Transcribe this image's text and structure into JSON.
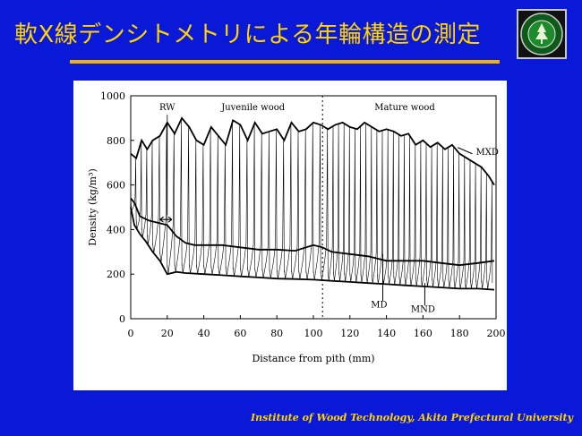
{
  "slide": {
    "title": "軟X線デンシトメトリによる年輪構造の測定",
    "footer": "Institute of Wood Technology, Akita Prefectural University"
  },
  "colors": {
    "background": "#0a18d8",
    "accent": "#ffd400",
    "rule": "#f0b400"
  },
  "chart_data": {
    "type": "line",
    "title": "",
    "xlabel": "Distance from pith (mm)",
    "ylabel": "Density (kg/m³)",
    "xlim": [
      0,
      200
    ],
    "ylim": [
      0,
      1000
    ],
    "x_ticks": [
      0,
      20,
      40,
      60,
      80,
      100,
      120,
      140,
      160,
      180,
      200
    ],
    "y_ticks": [
      0,
      200,
      400,
      600,
      800,
      1000
    ],
    "grid": false,
    "region_divider_x": 105,
    "region_labels": [
      "Juvenile wood",
      "Mature wood"
    ],
    "annotations": [
      "RW",
      "MXD",
      "MD",
      "MND"
    ],
    "series": [
      {
        "name": "MXD",
        "x": [
          0,
          3,
          6,
          9,
          12,
          16,
          20,
          24,
          28,
          32,
          36,
          40,
          44,
          48,
          52,
          56,
          60,
          64,
          68,
          72,
          76,
          80,
          84,
          88,
          92,
          96,
          100,
          104,
          108,
          112,
          116,
          120,
          124,
          128,
          132,
          136,
          140,
          144,
          148,
          152,
          156,
          160,
          164,
          168,
          172,
          176,
          180,
          184,
          188,
          192,
          196,
          199
        ],
        "y": [
          740,
          720,
          800,
          760,
          800,
          820,
          880,
          830,
          900,
          860,
          800,
          780,
          860,
          820,
          780,
          890,
          870,
          800,
          880,
          830,
          840,
          850,
          800,
          880,
          840,
          850,
          880,
          870,
          850,
          870,
          880,
          860,
          850,
          880,
          860,
          840,
          850,
          840,
          820,
          830,
          780,
          800,
          770,
          790,
          760,
          780,
          740,
          720,
          700,
          680,
          640,
          600
        ]
      },
      {
        "name": "MD",
        "x": [
          0,
          2,
          5,
          10,
          15,
          20,
          25,
          30,
          35,
          40,
          50,
          60,
          70,
          80,
          90,
          100,
          105,
          110,
          120,
          130,
          140,
          150,
          160,
          170,
          180,
          190,
          199
        ],
        "y": [
          540,
          520,
          460,
          440,
          430,
          420,
          370,
          340,
          330,
          330,
          330,
          320,
          310,
          310,
          305,
          330,
          320,
          300,
          290,
          280,
          260,
          260,
          260,
          250,
          240,
          250,
          260
        ]
      },
      {
        "name": "MND",
        "x": [
          0,
          2,
          5,
          8,
          12,
          16,
          20,
          25,
          30,
          40,
          50,
          60,
          70,
          80,
          90,
          100,
          110,
          120,
          130,
          140,
          150,
          160,
          170,
          180,
          190,
          199
        ],
        "y": [
          500,
          420,
          380,
          350,
          300,
          260,
          200,
          210,
          205,
          200,
          195,
          190,
          185,
          180,
          178,
          175,
          170,
          165,
          160,
          155,
          150,
          145,
          140,
          135,
          135,
          130
        ]
      }
    ],
    "density_profile": {
      "name": "Density profile",
      "ring_boundaries_x": [
        3,
        6,
        9,
        12,
        16,
        20,
        24,
        28,
        32,
        36,
        40,
        44,
        48,
        52,
        56,
        60,
        64,
        68,
        72,
        76,
        80,
        84,
        88,
        92,
        96,
        100,
        104,
        108,
        111,
        114,
        117,
        120,
        123,
        126,
        129,
        132,
        135,
        138,
        141,
        144,
        147,
        150,
        153,
        156,
        159,
        162,
        165,
        168,
        171,
        174,
        177,
        180,
        183,
        186,
        189,
        192,
        195,
        198
      ]
    }
  }
}
